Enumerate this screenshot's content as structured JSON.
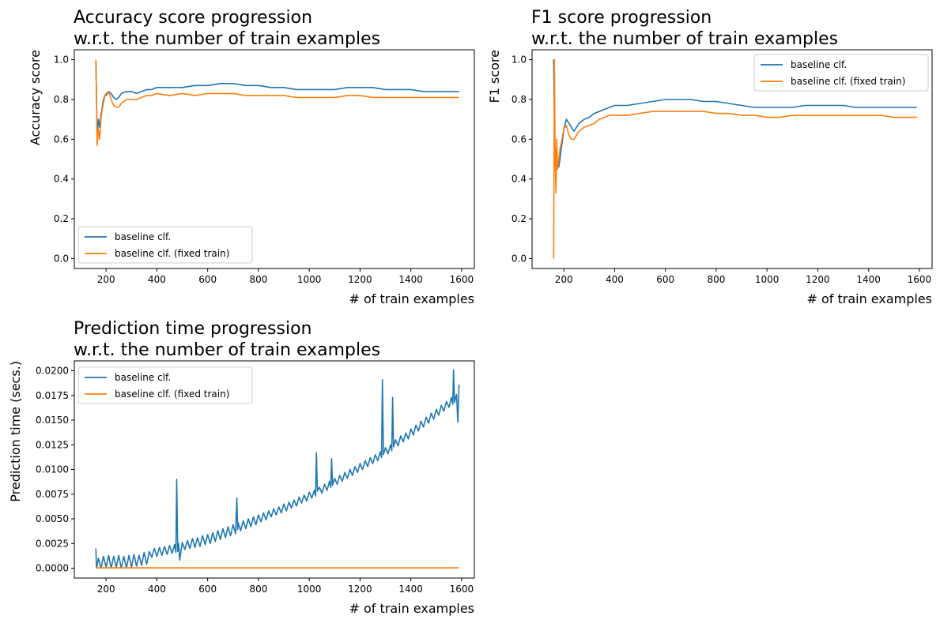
{
  "colors": {
    "baseline": "#1f77b4",
    "fixed_train": "#ff7f0e"
  },
  "chart_data": [
    {
      "id": "accuracy",
      "type": "line",
      "title": [
        "Accuracy score progression",
        "w.r.t. the number of train examples"
      ],
      "xlabel": "# of train examples",
      "ylabel": "Accuracy score",
      "xlim": [
        75,
        1650
      ],
      "ylim": [
        -0.05,
        1.05
      ],
      "xticks": [
        200,
        400,
        600,
        800,
        1000,
        1200,
        1400,
        1600
      ],
      "yticks": [
        0.0,
        0.2,
        0.4,
        0.6,
        0.8,
        1.0
      ],
      "ytick_labels": [
        "0.0",
        "0.2",
        "0.4",
        "0.6",
        "0.8",
        "1.0"
      ],
      "legend": "lower-left",
      "series": [
        {
          "name": "baseline clf.",
          "color": "#1f77b4",
          "x": [
            160,
            165,
            170,
            175,
            180,
            185,
            190,
            195,
            200,
            210,
            220,
            230,
            240,
            250,
            260,
            280,
            300,
            320,
            340,
            360,
            380,
            400,
            450,
            500,
            550,
            600,
            650,
            700,
            750,
            800,
            850,
            900,
            950,
            1000,
            1050,
            1100,
            1150,
            1200,
            1250,
            1300,
            1350,
            1400,
            1450,
            1500,
            1550,
            1590
          ],
          "y": [
            1.0,
            0.6,
            0.7,
            0.66,
            0.72,
            0.76,
            0.8,
            0.82,
            0.82,
            0.84,
            0.83,
            0.81,
            0.8,
            0.81,
            0.83,
            0.84,
            0.84,
            0.83,
            0.84,
            0.85,
            0.85,
            0.86,
            0.86,
            0.86,
            0.87,
            0.87,
            0.88,
            0.88,
            0.87,
            0.87,
            0.86,
            0.86,
            0.85,
            0.85,
            0.85,
            0.85,
            0.86,
            0.86,
            0.86,
            0.85,
            0.85,
            0.85,
            0.84,
            0.84,
            0.84,
            0.84
          ]
        },
        {
          "name": "baseline clf. (fixed train)",
          "color": "#ff7f0e",
          "x": [
            160,
            165,
            170,
            175,
            180,
            185,
            190,
            195,
            200,
            210,
            220,
            230,
            240,
            250,
            260,
            280,
            300,
            320,
            340,
            360,
            380,
            400,
            450,
            500,
            550,
            600,
            650,
            700,
            750,
            800,
            850,
            900,
            950,
            1000,
            1050,
            1100,
            1150,
            1200,
            1250,
            1300,
            1350,
            1400,
            1450,
            1500,
            1550,
            1590
          ],
          "y": [
            1.0,
            0.57,
            0.65,
            0.6,
            0.7,
            0.75,
            0.78,
            0.82,
            0.83,
            0.84,
            0.8,
            0.77,
            0.76,
            0.76,
            0.78,
            0.8,
            0.8,
            0.8,
            0.81,
            0.82,
            0.82,
            0.83,
            0.82,
            0.83,
            0.82,
            0.83,
            0.83,
            0.83,
            0.82,
            0.82,
            0.82,
            0.82,
            0.81,
            0.81,
            0.81,
            0.81,
            0.82,
            0.82,
            0.81,
            0.81,
            0.81,
            0.81,
            0.81,
            0.81,
            0.81,
            0.81
          ]
        }
      ]
    },
    {
      "id": "f1",
      "type": "line",
      "title": [
        "F1 score progression",
        "w.r.t. the number of train examples"
      ],
      "xlabel": "# of train examples",
      "ylabel": "F1 score",
      "xlim": [
        75,
        1650
      ],
      "ylim": [
        -0.05,
        1.05
      ],
      "xticks": [
        200,
        400,
        600,
        800,
        1000,
        1200,
        1400,
        1600
      ],
      "yticks": [
        0.0,
        0.2,
        0.4,
        0.6,
        0.8,
        1.0
      ],
      "ytick_labels": [
        "0.0",
        "0.2",
        "0.4",
        "0.6",
        "0.8",
        "1.0"
      ],
      "legend": "upper-right",
      "series": [
        {
          "name": "baseline clf.",
          "color": "#1f77b4",
          "x": [
            160,
            165,
            170,
            175,
            180,
            185,
            190,
            195,
            200,
            210,
            220,
            230,
            240,
            250,
            260,
            280,
            300,
            320,
            340,
            360,
            380,
            400,
            450,
            500,
            550,
            600,
            650,
            700,
            750,
            800,
            850,
            900,
            950,
            1000,
            1050,
            1100,
            1150,
            1200,
            1250,
            1300,
            1350,
            1400,
            1450,
            1500,
            1550,
            1590
          ],
          "y": [
            1.0,
            0.5,
            0.55,
            0.46,
            0.46,
            0.5,
            0.55,
            0.6,
            0.65,
            0.7,
            0.68,
            0.66,
            0.64,
            0.66,
            0.68,
            0.7,
            0.71,
            0.73,
            0.74,
            0.75,
            0.76,
            0.77,
            0.77,
            0.78,
            0.79,
            0.8,
            0.8,
            0.8,
            0.79,
            0.79,
            0.78,
            0.77,
            0.76,
            0.76,
            0.76,
            0.76,
            0.77,
            0.77,
            0.77,
            0.77,
            0.76,
            0.76,
            0.76,
            0.76,
            0.76,
            0.76
          ]
        },
        {
          "name": "baseline clf. (fixed train)",
          "color": "#ff7f0e",
          "x": [
            160,
            163,
            166,
            169,
            172,
            175,
            180,
            185,
            190,
            195,
            200,
            210,
            220,
            230,
            240,
            250,
            260,
            280,
            300,
            320,
            340,
            360,
            380,
            400,
            450,
            500,
            550,
            600,
            650,
            700,
            750,
            800,
            850,
            900,
            950,
            1000,
            1050,
            1100,
            1150,
            1200,
            1250,
            1300,
            1350,
            1400,
            1450,
            1500,
            1550,
            1590
          ],
          "y": [
            0.0,
            1.0,
            0.5,
            0.33,
            0.6,
            0.45,
            0.5,
            0.55,
            0.58,
            0.62,
            0.65,
            0.67,
            0.62,
            0.6,
            0.6,
            0.62,
            0.64,
            0.66,
            0.67,
            0.68,
            0.7,
            0.71,
            0.72,
            0.72,
            0.72,
            0.73,
            0.74,
            0.74,
            0.74,
            0.74,
            0.74,
            0.73,
            0.73,
            0.72,
            0.72,
            0.71,
            0.71,
            0.72,
            0.72,
            0.72,
            0.72,
            0.72,
            0.72,
            0.72,
            0.72,
            0.71,
            0.71,
            0.71
          ]
        }
      ]
    },
    {
      "id": "prediction-time",
      "type": "line",
      "title": [
        "Prediction time progression",
        "w.r.t. the number of train examples"
      ],
      "xlabel": "# of train examples",
      "ylabel": "Prediction time (secs.)",
      "xlim": [
        75,
        1650
      ],
      "ylim": [
        -0.001,
        0.021
      ],
      "xticks": [
        200,
        400,
        600,
        800,
        1000,
        1200,
        1400,
        1600
      ],
      "yticks": [
        0.0,
        0.0025,
        0.005,
        0.0075,
        0.01,
        0.0125,
        0.015,
        0.0175,
        0.02
      ],
      "ytick_labels": [
        "0.0000",
        "0.0025",
        "0.0050",
        "0.0075",
        "0.0100",
        "0.0125",
        "0.0150",
        "0.0175",
        "0.0200"
      ],
      "legend": "upper-left",
      "series": [
        {
          "name": "baseline clf.",
          "color": "#1f77b4",
          "x": [
            160,
            162,
            170,
            180,
            190,
            200,
            210,
            220,
            230,
            240,
            250,
            260,
            270,
            280,
            290,
            300,
            310,
            320,
            330,
            340,
            350,
            360,
            370,
            380,
            390,
            400,
            410,
            420,
            430,
            440,
            450,
            460,
            470,
            475,
            478,
            482,
            486,
            490,
            500,
            510,
            520,
            530,
            540,
            550,
            560,
            570,
            580,
            590,
            600,
            610,
            620,
            630,
            640,
            650,
            660,
            670,
            680,
            690,
            700,
            710,
            715,
            718,
            720,
            730,
            740,
            750,
            760,
            770,
            780,
            790,
            800,
            810,
            820,
            830,
            840,
            850,
            860,
            870,
            880,
            890,
            900,
            910,
            920,
            930,
            940,
            950,
            960,
            970,
            980,
            990,
            1000,
            1010,
            1020,
            1025,
            1028,
            1032,
            1040,
            1050,
            1060,
            1070,
            1080,
            1085,
            1088,
            1092,
            1100,
            1110,
            1120,
            1130,
            1140,
            1150,
            1160,
            1170,
            1180,
            1190,
            1200,
            1210,
            1220,
            1230,
            1240,
            1250,
            1260,
            1270,
            1280,
            1285,
            1288,
            1292,
            1300,
            1310,
            1320,
            1325,
            1328,
            1332,
            1340,
            1350,
            1360,
            1370,
            1380,
            1390,
            1400,
            1410,
            1420,
            1430,
            1440,
            1450,
            1460,
            1470,
            1480,
            1490,
            1500,
            1510,
            1520,
            1530,
            1540,
            1550,
            1560,
            1565,
            1568,
            1572,
            1580,
            1585,
            1590
          ],
          "y": [
            0.002,
            0.0,
            0.001,
            0.0,
            0.0012,
            0.0001,
            0.0013,
            0.0,
            0.0012,
            0.0001,
            0.0013,
            0.0,
            0.0012,
            0.0,
            0.0013,
            0.0001,
            0.0014,
            0.0002,
            0.0013,
            0.0003,
            0.0016,
            0.0004,
            0.0017,
            0.0011,
            0.002,
            0.0012,
            0.0021,
            0.0013,
            0.0022,
            0.0014,
            0.0023,
            0.0015,
            0.0024,
            0.0016,
            0.009,
            0.0017,
            0.0025,
            0.0008,
            0.0026,
            0.0019,
            0.0028,
            0.002,
            0.003,
            0.0021,
            0.0031,
            0.0022,
            0.0033,
            0.0024,
            0.0034,
            0.0025,
            0.0036,
            0.0027,
            0.0038,
            0.0029,
            0.004,
            0.0031,
            0.0042,
            0.0033,
            0.0044,
            0.0035,
            0.0071,
            0.0039,
            0.0046,
            0.0038,
            0.0048,
            0.004,
            0.005,
            0.0042,
            0.0052,
            0.0044,
            0.0054,
            0.0047,
            0.0056,
            0.0049,
            0.0058,
            0.0052,
            0.006,
            0.0054,
            0.0062,
            0.0056,
            0.0065,
            0.0058,
            0.0067,
            0.0061,
            0.0069,
            0.0063,
            0.0072,
            0.0066,
            0.0074,
            0.0068,
            0.0077,
            0.0071,
            0.0079,
            0.0073,
            0.0117,
            0.0078,
            0.0082,
            0.0076,
            0.0085,
            0.0079,
            0.0088,
            0.0082,
            0.0111,
            0.0084,
            0.0091,
            0.0085,
            0.0094,
            0.0088,
            0.0097,
            0.0091,
            0.01,
            0.0094,
            0.0103,
            0.0097,
            0.0106,
            0.01,
            0.0109,
            0.0103,
            0.0112,
            0.0106,
            0.0115,
            0.0109,
            0.0118,
            0.0112,
            0.0191,
            0.0115,
            0.0122,
            0.0116,
            0.0125,
            0.0119,
            0.0173,
            0.0123,
            0.013,
            0.0124,
            0.0134,
            0.0128,
            0.0137,
            0.0131,
            0.0141,
            0.0135,
            0.0145,
            0.0139,
            0.0149,
            0.0143,
            0.0153,
            0.0147,
            0.0157,
            0.0151,
            0.0161,
            0.0155,
            0.0165,
            0.0159,
            0.0169,
            0.0163,
            0.0173,
            0.0166,
            0.0201,
            0.0168,
            0.0176,
            0.0148,
            0.0186
          ]
        },
        {
          "name": "baseline clf. (fixed train)",
          "color": "#ff7f0e",
          "x": [
            160,
            1590
          ],
          "y": [
            3e-05,
            3e-05
          ]
        }
      ]
    }
  ]
}
